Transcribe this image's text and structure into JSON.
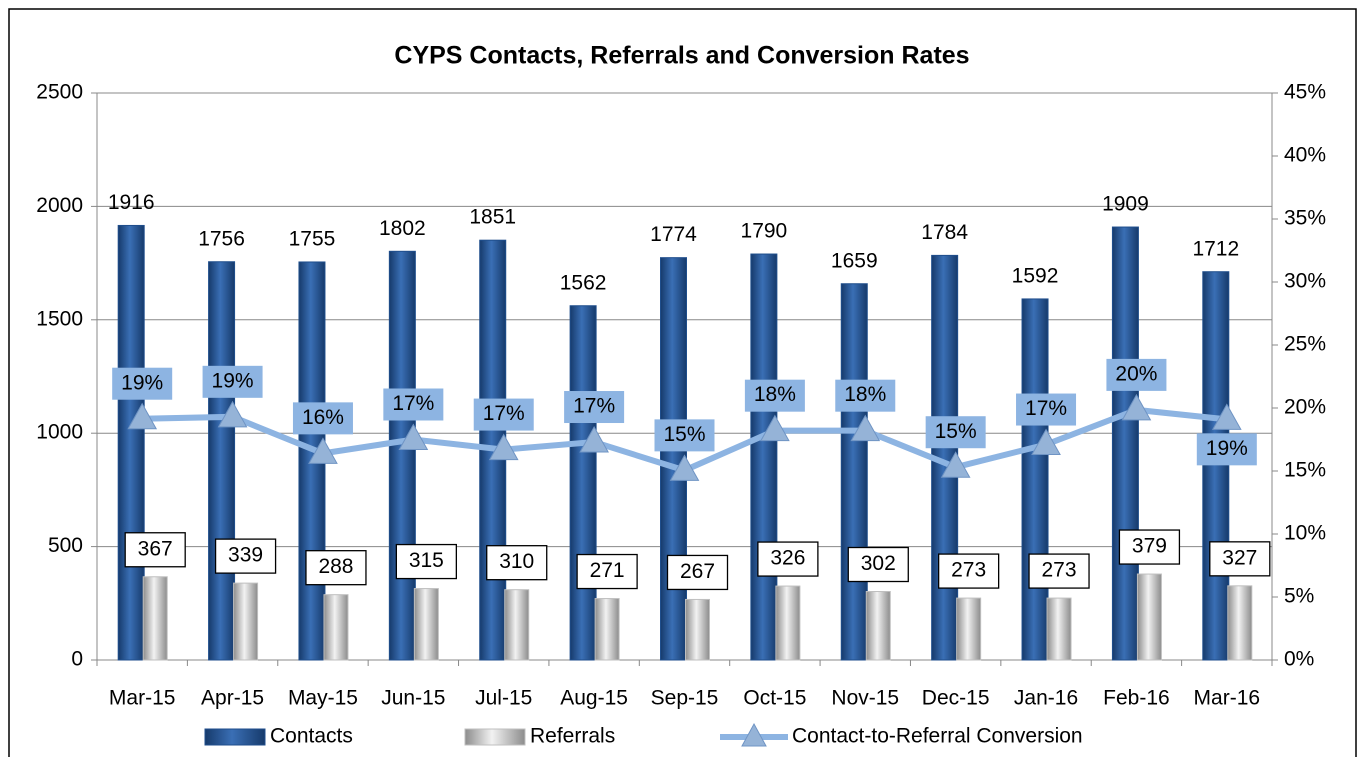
{
  "chart_data": {
    "type": "bar-line",
    "title": "CYPS Contacts, Referrals and Conversion Rates",
    "categories": [
      "Mar-15",
      "Apr-15",
      "May-15",
      "Jun-15",
      "Jul-15",
      "Aug-15",
      "Sep-15",
      "Oct-15",
      "Nov-15",
      "Dec-15",
      "Jan-16",
      "Feb-16",
      "Mar-16"
    ],
    "series": [
      {
        "name": "Contacts",
        "type": "bar",
        "color": "#1f4e8c",
        "values": [
          1916,
          1756,
          1755,
          1802,
          1851,
          1562,
          1774,
          1790,
          1659,
          1784,
          1592,
          1909,
          1712
        ]
      },
      {
        "name": "Referrals",
        "type": "bar",
        "color": "#bfbfbf",
        "values": [
          367,
          339,
          288,
          315,
          310,
          271,
          267,
          326,
          302,
          273,
          273,
          379,
          327
        ]
      },
      {
        "name": "Contact-to-Referral Conversion",
        "type": "line",
        "axis": "y2",
        "color": "#8db4e2",
        "values": [
          19.15,
          19.3,
          16.4,
          17.5,
          16.7,
          17.3,
          15.05,
          18.2,
          18.2,
          15.3,
          17.1,
          19.85,
          19.1
        ],
        "value_labels": [
          "19%",
          "19%",
          "16%",
          "17%",
          "17%",
          "17%",
          "15%",
          "18%",
          "18%",
          "15%",
          "17%",
          "20%",
          "19%"
        ]
      }
    ],
    "ylim": [
      0,
      2500
    ],
    "yticks": [
      0,
      500,
      1000,
      1500,
      2000,
      2500
    ],
    "y2lim": [
      0,
      45
    ],
    "y2ticks": [
      {
        "value": 0,
        "label": "0%"
      },
      {
        "value": 5,
        "label": "5%"
      },
      {
        "value": 10,
        "label": "10%"
      },
      {
        "value": 15,
        "label": "15%"
      },
      {
        "value": 20,
        "label": "20%"
      },
      {
        "value": 25,
        "label": "25%"
      },
      {
        "value": 30,
        "label": "30%"
      },
      {
        "value": 35,
        "label": "35%"
      },
      {
        "value": 40,
        "label": "40%"
      },
      {
        "value": 45,
        "label": "45%"
      }
    ],
    "legend": "bottom"
  }
}
